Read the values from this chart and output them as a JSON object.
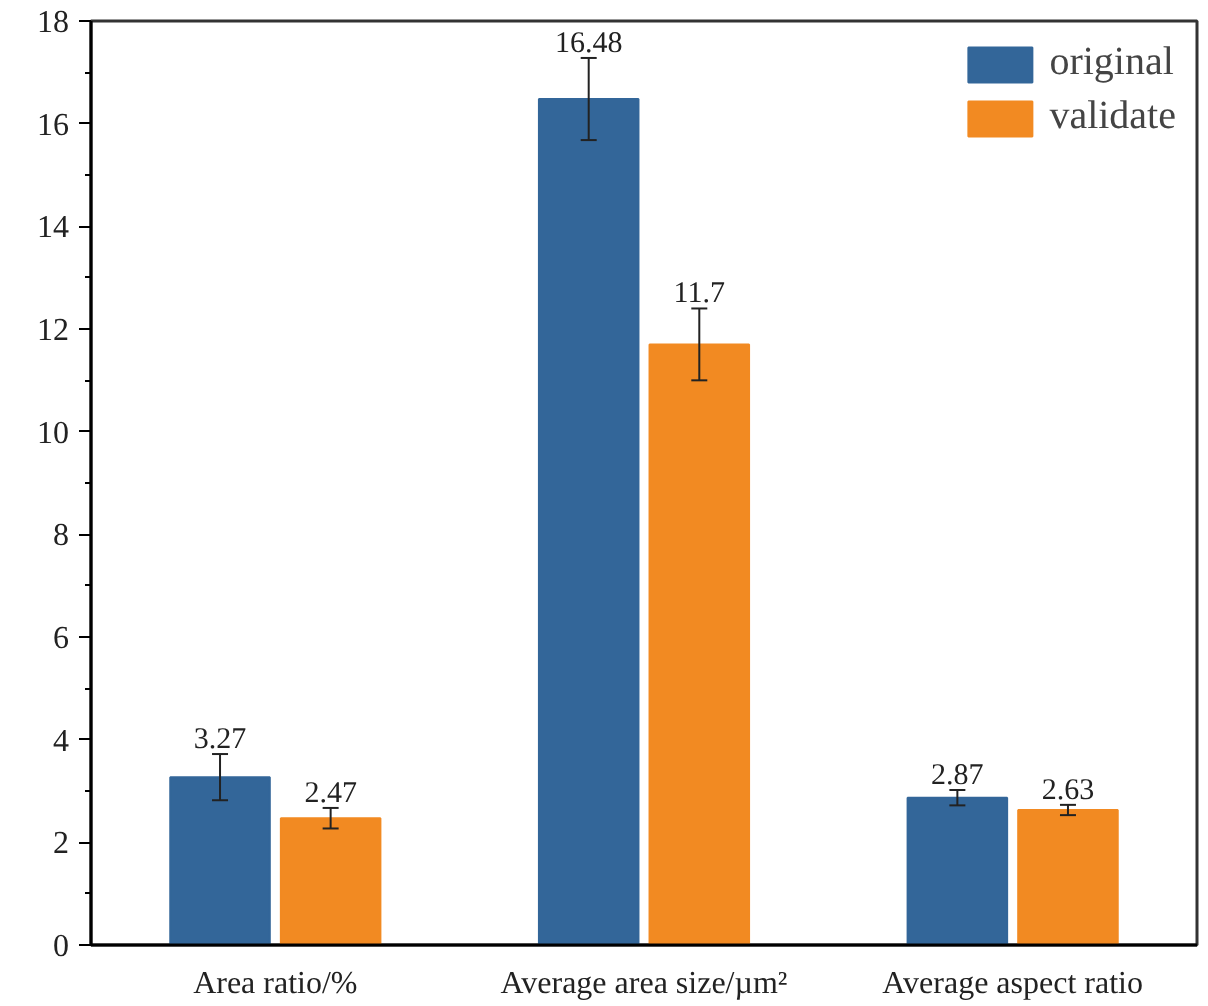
{
  "chart_data": {
    "type": "bar",
    "categories": [
      "Area ratio/%",
      "Average area size/µm²",
      "Average aspect ratio"
    ],
    "series": [
      {
        "name": "original",
        "color": "#336699",
        "values": [
          3.27,
          16.48,
          2.87
        ],
        "errors": [
          0.45,
          0.8,
          0.15
        ]
      },
      {
        "name": "validate",
        "color": "#f28a22",
        "values": [
          2.47,
          11.7,
          2.63
        ],
        "errors": [
          0.2,
          0.7,
          0.1
        ]
      }
    ],
    "ylim": [
      0,
      18
    ],
    "yticks": [
      0,
      2,
      4,
      6,
      8,
      10,
      12,
      14,
      16,
      18
    ],
    "data_labels": true,
    "legend": "top right",
    "grid": false
  }
}
